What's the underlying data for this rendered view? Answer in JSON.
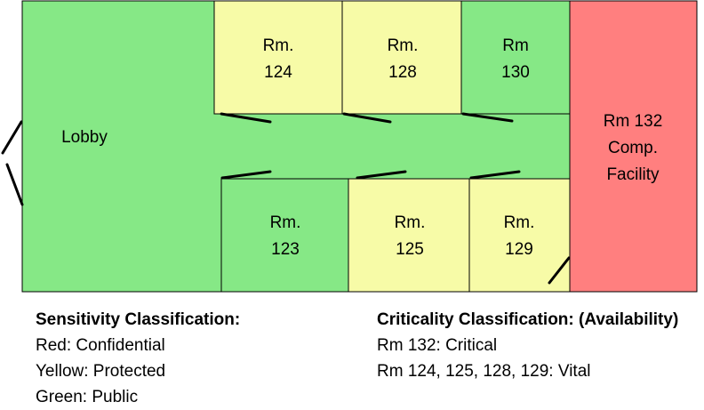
{
  "colors": {
    "public": "#86e886",
    "protected": "#f7fba7",
    "confidential": "#ff7f7f",
    "outline": "#000000"
  },
  "rooms": {
    "lobby": {
      "label": "Lobby",
      "classification": "public"
    },
    "rm124": {
      "line1": "Rm.",
      "line2": "124",
      "classification": "protected"
    },
    "rm128": {
      "line1": "Rm.",
      "line2": "128",
      "classification": "protected"
    },
    "rm130": {
      "line1": "Rm",
      "line2": "130",
      "classification": "public"
    },
    "rm123": {
      "line1": "Rm.",
      "line2": "123",
      "classification": "public"
    },
    "rm125": {
      "line1": "Rm.",
      "line2": "125",
      "classification": "protected"
    },
    "rm129": {
      "line1": "Rm.",
      "line2": "129",
      "classification": "protected"
    },
    "rm132": {
      "line1": "Rm 132",
      "line2": "Comp.",
      "line3": "Facility",
      "classification": "confidential"
    }
  },
  "legend": {
    "sensitivity": {
      "title": "Sensitivity Classification:",
      "items": [
        "Red: Confidential",
        "Yellow: Protected",
        "Green: Public"
      ]
    },
    "criticality": {
      "title": "Criticality Classification: (Availability)",
      "items": [
        "Rm 132: Critical",
        "Rm 124, 125, 128, 129: Vital"
      ]
    }
  }
}
